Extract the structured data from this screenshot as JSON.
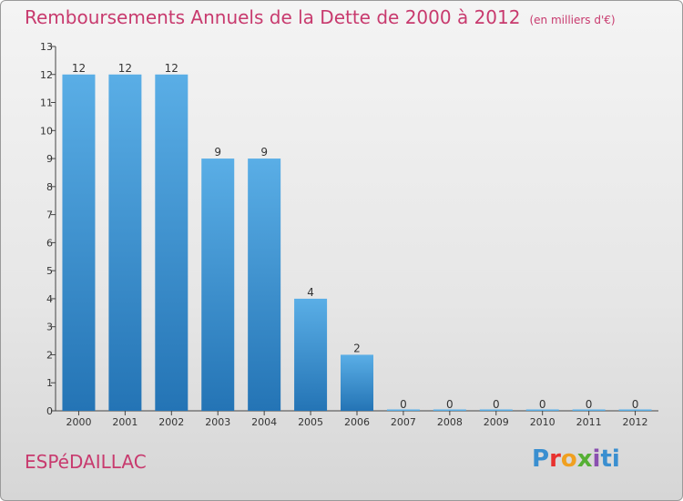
{
  "header": {
    "title": "Remboursements Annuels de la Dette de 2000 à 2012",
    "subtitle": "(en milliers d'€)"
  },
  "footer": {
    "commune": "ESPéDAILLAC",
    "logo_parts": [
      "P",
      "r",
      "o",
      "x",
      "i",
      "ti"
    ]
  },
  "colors": {
    "title": "#c83a6e",
    "bar_top": "#5aaee6",
    "bar_bottom": "#2474b5"
  },
  "chart_data": {
    "type": "bar",
    "title": "Remboursements Annuels de la Dette de 2000 à 2012",
    "subtitle": "(en milliers d'€)",
    "categories": [
      "2000",
      "2001",
      "2002",
      "2003",
      "2004",
      "2005",
      "2006",
      "2007",
      "2008",
      "2009",
      "2010",
      "2011",
      "2012"
    ],
    "values": [
      12,
      12,
      12,
      9,
      9,
      4,
      2,
      0,
      0,
      0,
      0,
      0,
      0
    ],
    "data_labels": [
      "12",
      "12",
      "12",
      "9",
      "9",
      "4",
      "2",
      "0",
      "0",
      "0",
      "0",
      "0",
      "0"
    ],
    "ylim": [
      0,
      13
    ],
    "yticks": [
      "0",
      "1",
      "2",
      "3",
      "4",
      "5",
      "6",
      "7",
      "8",
      "9",
      "10",
      "11",
      "12",
      "13"
    ],
    "grid": false,
    "xlabel": "",
    "ylabel": ""
  }
}
